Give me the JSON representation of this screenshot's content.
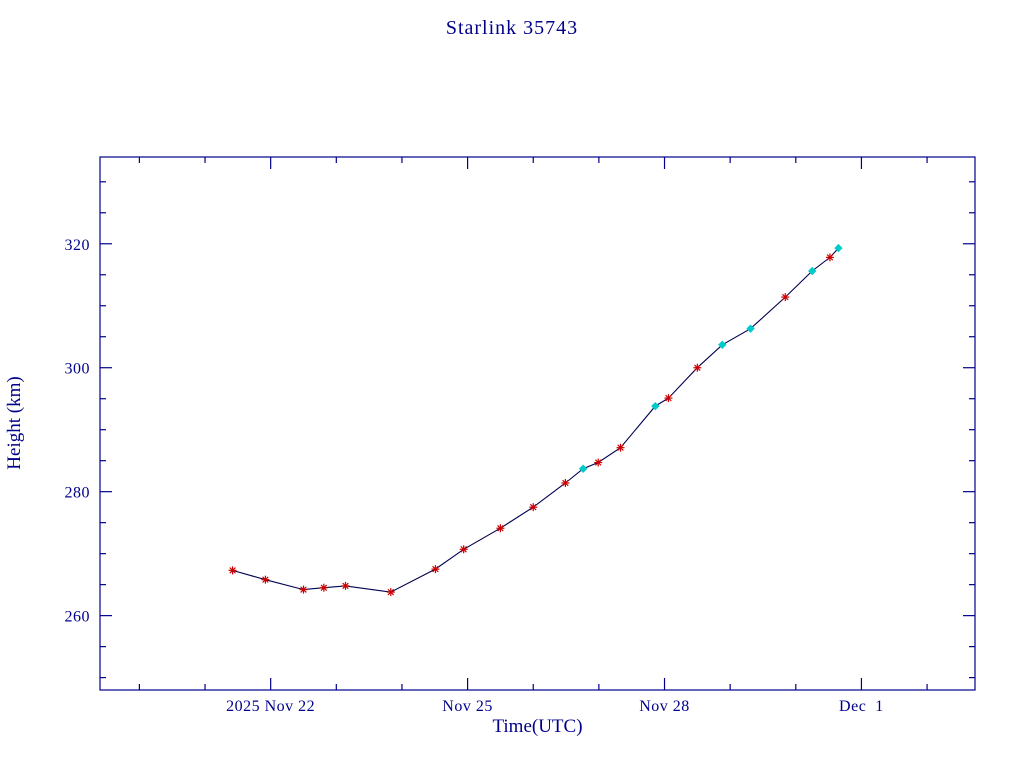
{
  "page_title": "Starlink 35743",
  "colors": {
    "background": "#FFFFFF",
    "axis": "#00008B",
    "text": "#00008B",
    "line": "#000050",
    "marker_red": "#CC0000",
    "marker_cyan": "#00CBCB"
  },
  "chart_data": {
    "type": "line",
    "title": "Starlink 35743",
    "xlabel": "Time(UTC)",
    "ylabel": "Height (km)",
    "x_axis_note": "x values are day numbers of Nov 2025; 31 = Dec 1",
    "xlim": [
      19.4,
      32.73
    ],
    "ylim": [
      248,
      334
    ],
    "grid": "off",
    "legend": "off",
    "x_major_ticks": [
      {
        "value": 22,
        "label": "2025 Nov 22"
      },
      {
        "value": 25,
        "label": "Nov 25"
      },
      {
        "value": 28,
        "label": "Nov 28"
      },
      {
        "value": 31,
        "label": "Dec  1"
      }
    ],
    "x_minor_ticks": [
      20,
      21,
      23,
      24,
      26,
      27,
      29,
      30,
      32
    ],
    "y_major_ticks": [
      {
        "value": 260,
        "label": "260"
      },
      {
        "value": 280,
        "label": "280"
      },
      {
        "value": 300,
        "label": "300"
      },
      {
        "value": 320,
        "label": "320"
      }
    ],
    "y_minor_ticks": [
      250,
      255,
      265,
      270,
      275,
      285,
      290,
      295,
      305,
      310,
      315,
      325,
      330
    ],
    "points": [
      {
        "x": 21.42,
        "y": 267.3,
        "marker": "asterisk"
      },
      {
        "x": 21.92,
        "y": 265.8,
        "marker": "asterisk"
      },
      {
        "x": 22.5,
        "y": 264.2,
        "marker": "asterisk"
      },
      {
        "x": 22.81,
        "y": 264.5,
        "marker": "asterisk"
      },
      {
        "x": 23.14,
        "y": 264.8,
        "marker": "asterisk"
      },
      {
        "x": 23.83,
        "y": 263.8,
        "marker": "asterisk"
      },
      {
        "x": 24.51,
        "y": 267.5,
        "marker": "asterisk"
      },
      {
        "x": 24.94,
        "y": 270.7,
        "marker": "asterisk"
      },
      {
        "x": 25.5,
        "y": 274.1,
        "marker": "asterisk"
      },
      {
        "x": 26.0,
        "y": 277.5,
        "marker": "asterisk"
      },
      {
        "x": 26.49,
        "y": 281.4,
        "marker": "asterisk"
      },
      {
        "x": 26.76,
        "y": 283.7,
        "marker": "diamond"
      },
      {
        "x": 26.99,
        "y": 284.7,
        "marker": "asterisk"
      },
      {
        "x": 27.33,
        "y": 287.1,
        "marker": "asterisk"
      },
      {
        "x": 27.86,
        "y": 293.8,
        "marker": "diamond"
      },
      {
        "x": 28.06,
        "y": 295.1,
        "marker": "asterisk"
      },
      {
        "x": 28.5,
        "y": 300.0,
        "marker": "asterisk"
      },
      {
        "x": 28.88,
        "y": 303.7,
        "marker": "diamond"
      },
      {
        "x": 29.31,
        "y": 306.3,
        "marker": "diamond"
      },
      {
        "x": 29.84,
        "y": 311.4,
        "marker": "asterisk"
      },
      {
        "x": 30.25,
        "y": 315.6,
        "marker": "diamond"
      },
      {
        "x": 30.52,
        "y": 317.8,
        "marker": "asterisk"
      },
      {
        "x": 30.65,
        "y": 319.3,
        "marker": "diamond"
      }
    ]
  }
}
